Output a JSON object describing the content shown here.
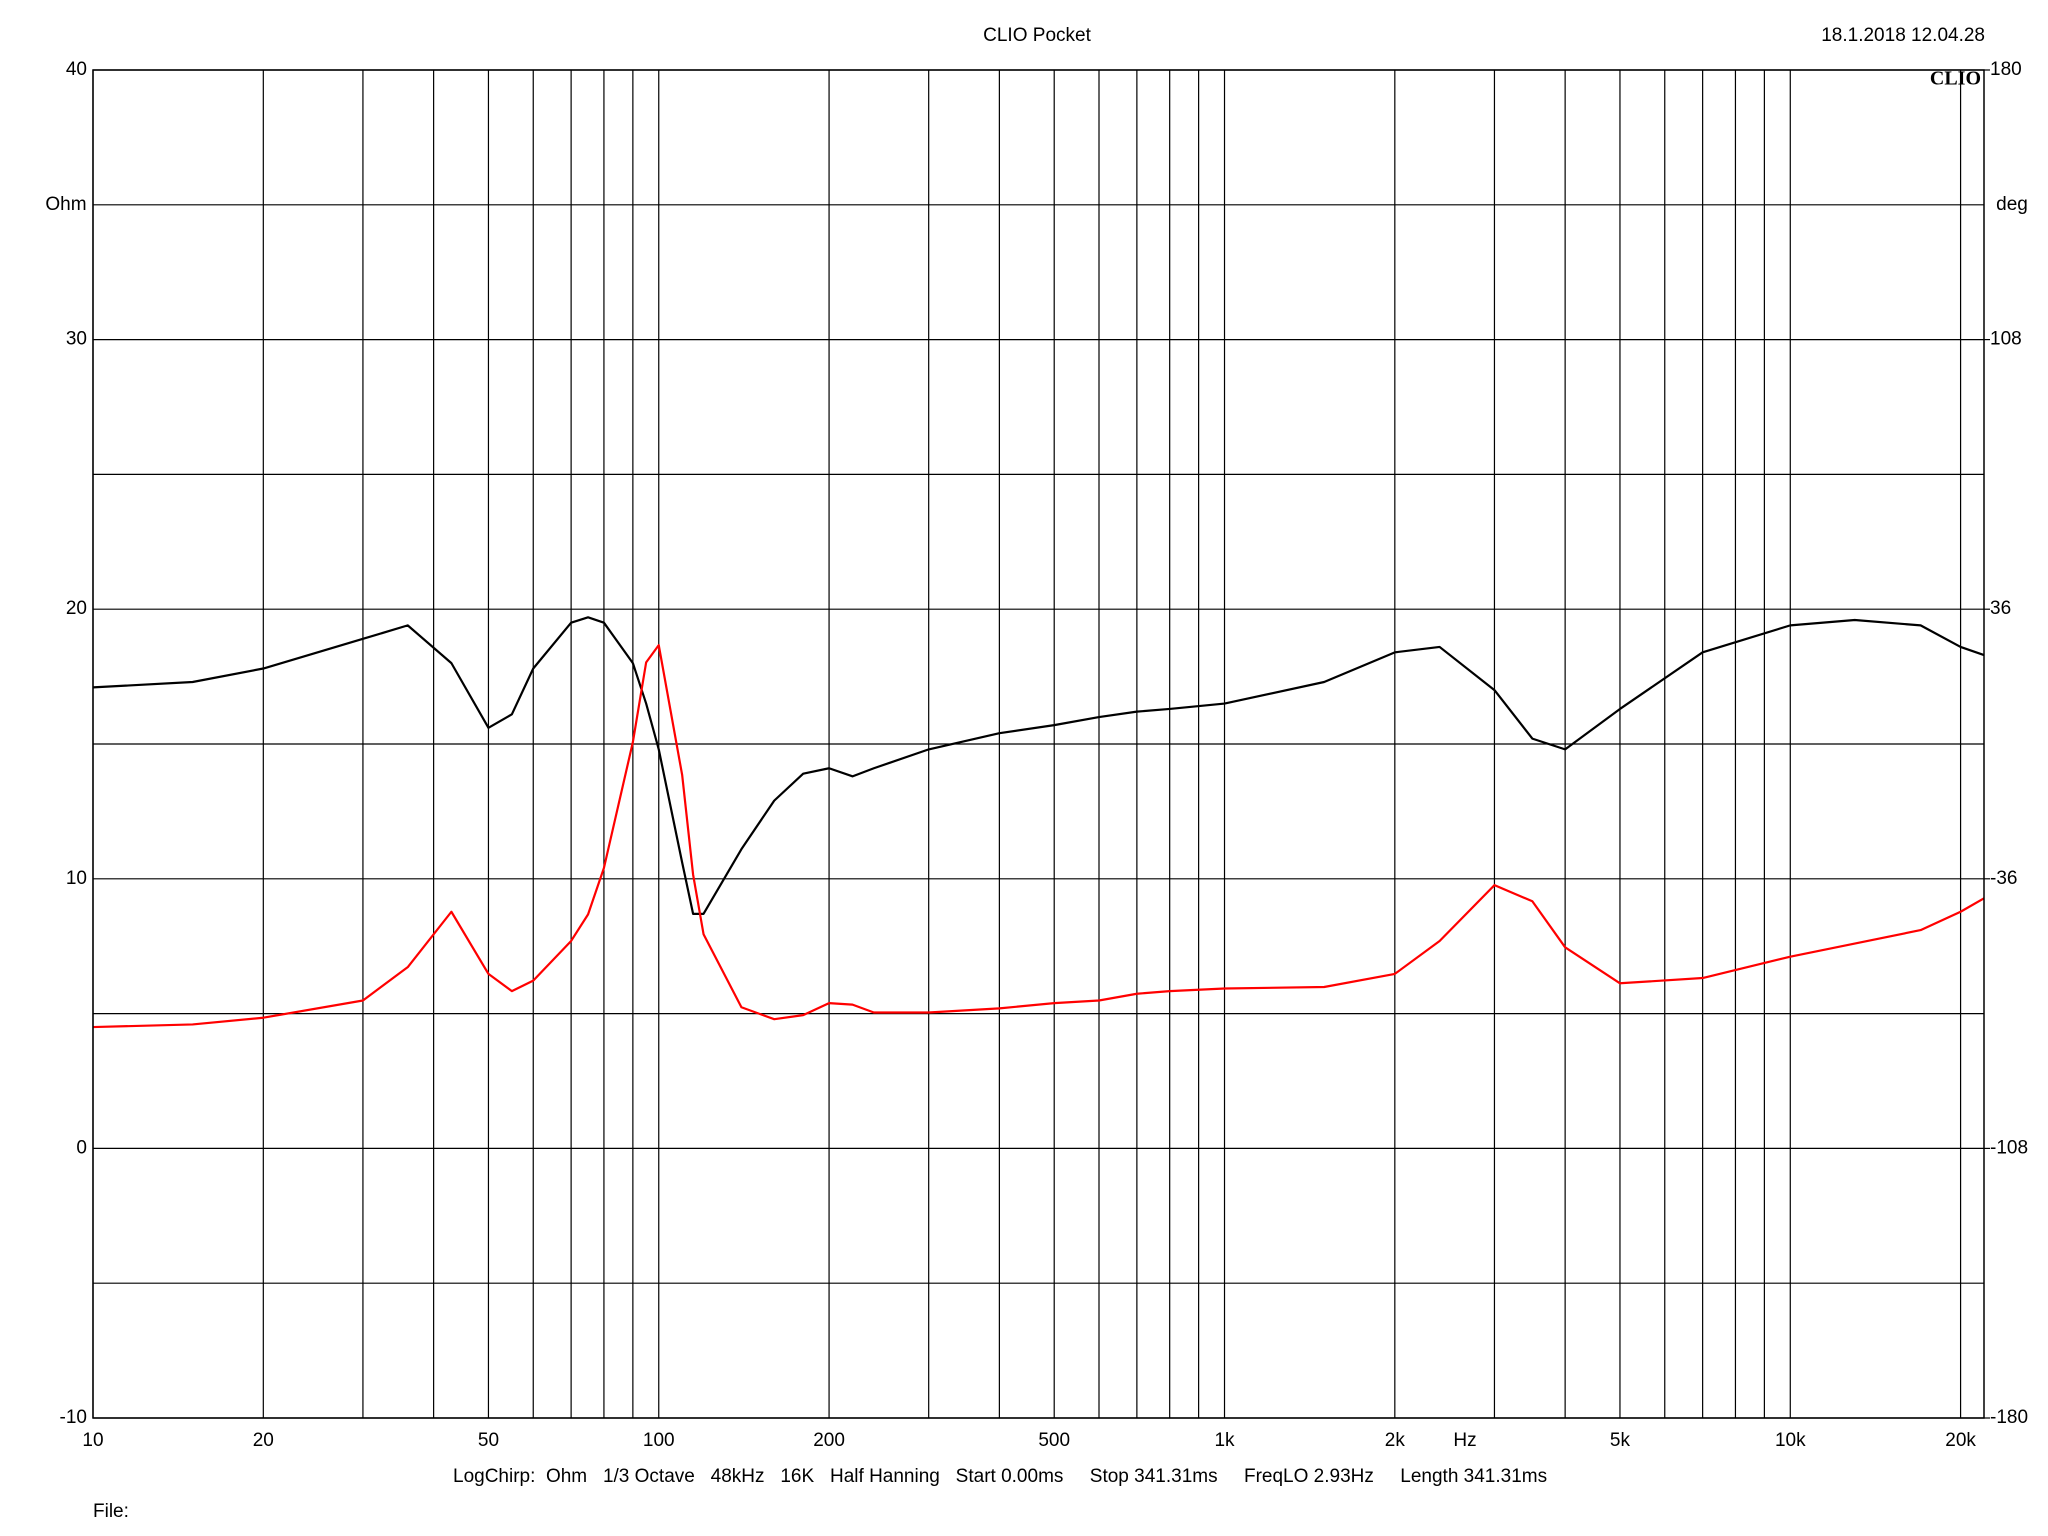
{
  "chart_data": {
    "type": "line",
    "title": "CLIO Pocket",
    "timestamp": "18.1.2018 12.04.28",
    "logo": "CLIO",
    "ylabel": "Ohm",
    "y2label": "deg",
    "xlabel": "Hz",
    "settings_line": "LogChirp:  Ohm   1/3 Octave   48kHz   16K   Half Hanning   Start 0.00ms     Stop 341.31ms     FreqLO 2.93Hz     Length 341.31ms",
    "file_label": "File:",
    "xscale": "log",
    "grid": true,
    "xlim": [
      10,
      22000
    ],
    "xticks": [
      10,
      20,
      50,
      100,
      200,
      500,
      {
        "value": 1000,
        "label": "1k"
      },
      {
        "value": 2000,
        "label": "2k"
      },
      {
        "value": 5000,
        "label": "5k"
      },
      {
        "value": 10000,
        "label": "10k"
      },
      {
        "value": 20000,
        "label": "20k"
      }
    ],
    "xminor_grid": [
      30,
      40,
      60,
      70,
      80,
      90,
      300,
      400,
      600,
      700,
      800,
      900,
      3000,
      4000,
      6000,
      7000,
      8000,
      9000
    ],
    "ylim": [
      -10,
      40
    ],
    "yticks": [
      -10,
      0,
      10,
      20,
      30,
      40
    ],
    "yminor_grid": [
      -5,
      5,
      15,
      25,
      35
    ],
    "y2lim": [
      -180,
      180
    ],
    "y2ticks": [
      -180,
      -108,
      -36,
      36,
      108,
      180
    ],
    "x": [
      10,
      15,
      20,
      30,
      36,
      43,
      50,
      55,
      60,
      70,
      75,
      80,
      90,
      95,
      100,
      110,
      115,
      120,
      140,
      160,
      180,
      200,
      220,
      240,
      300,
      400,
      500,
      600,
      700,
      800,
      1000,
      1500,
      2000,
      2400,
      3000,
      3500,
      4000,
      5000,
      7000,
      10000,
      13000,
      17000,
      20000,
      22000
    ],
    "series": [
      {
        "color": "#000000",
        "values": [
          17.1,
          17.3,
          17.8,
          18.9,
          19.4,
          18.0,
          15.6,
          16.1,
          17.8,
          19.5,
          19.7,
          19.5,
          18.0,
          16.5,
          14.8,
          10.6,
          8.7,
          8.7,
          11.1,
          12.9,
          13.9,
          14.1,
          13.8,
          14.1,
          14.8,
          15.4,
          15.7,
          16.0,
          16.2,
          16.3,
          16.5,
          17.3,
          18.4,
          18.6,
          17.0,
          15.2,
          14.8,
          16.3,
          18.4,
          19.4,
          19.6,
          19.4,
          18.6,
          18.3
        ]
      },
      {
        "color": "#ff0000",
        "axis": "y2",
        "values": [
          -75.6,
          -74.9,
          -73.1,
          -68.5,
          -59.6,
          -44.8,
          -61.4,
          -66.0,
          -63.2,
          -52.6,
          -45.5,
          -33.1,
          0.5,
          21.8,
          26.4,
          -8.3,
          -34.9,
          -50.8,
          -70.3,
          -73.5,
          -72.4,
          -69.2,
          -69.6,
          -71.7,
          -71.7,
          -70.6,
          -69.2,
          -68.5,
          -66.7,
          -66.0,
          -65.3,
          -64.9,
          -61.4,
          -52.6,
          -37.7,
          -42.0,
          -54.3,
          -63.9,
          -62.5,
          -56.8,
          -53.3,
          -49.7,
          -44.8,
          -41.2
        ]
      }
    ]
  }
}
